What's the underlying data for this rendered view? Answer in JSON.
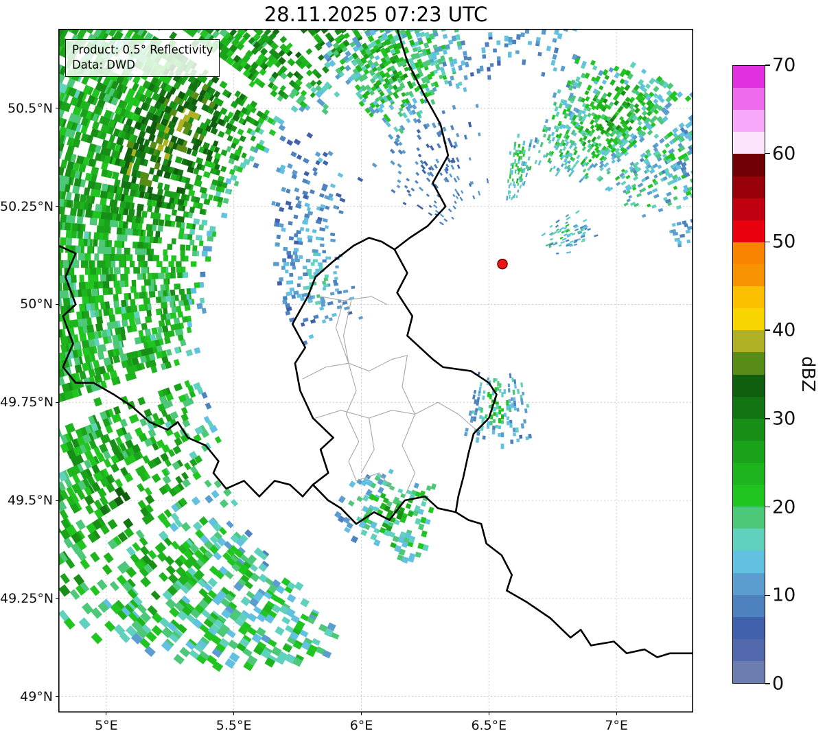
{
  "title": "28.11.2025 07:23 UTC",
  "annotation": {
    "line1": "Product: 0.5° Reflectivity",
    "line2": "Data: DWD"
  },
  "colorbar": {
    "label": "dBZ",
    "min": 0,
    "max": 70,
    "step": 2.5,
    "ticks": [
      0,
      10,
      20,
      30,
      40,
      50,
      60,
      70
    ],
    "colors": [
      "#6b7cae",
      "#5269ae",
      "#4161ad",
      "#4d82be",
      "#5b9dce",
      "#62c0e0",
      "#5fd1bc",
      "#4cc878",
      "#20c520",
      "#1db41d",
      "#1aa31a",
      "#178f17",
      "#137413",
      "#0f5f0f",
      "#578c17",
      "#b0b024",
      "#f8d400",
      "#fdc000",
      "#f89300",
      "#f88400",
      "#e8000f",
      "#c00010",
      "#98000a",
      "#700006",
      "#fde4fd",
      "#f8a8f8",
      "#ee6bee",
      "#e030e0"
    ]
  },
  "chart_data": {
    "type": "radar_reflectivity_map",
    "timestamp_utc": "28.11.2025 07:23 UTC",
    "product": "0.5° Reflectivity",
    "data_source": "DWD",
    "unit": "dBZ",
    "axes": {
      "lon_min": 4.812,
      "lon_max": 7.301,
      "lat_min": 48.959,
      "lat_max": 50.703,
      "lon_ticks": [
        {
          "value": 5.0,
          "label": "5°E"
        },
        {
          "value": 5.5,
          "label": "5.5°E"
        },
        {
          "value": 6.0,
          "label": "6°E"
        },
        {
          "value": 6.5,
          "label": "6.5°E"
        },
        {
          "value": 7.0,
          "label": "7°E"
        }
      ],
      "lat_ticks": [
        {
          "value": 50.5,
          "label": "50.5°N"
        },
        {
          "value": 50.25,
          "label": "50.25°N"
        },
        {
          "value": 50.0,
          "label": "50°N"
        },
        {
          "value": 49.75,
          "label": "49.75°N"
        },
        {
          "value": 49.5,
          "label": "49.5°N"
        },
        {
          "value": 49.25,
          "label": "49.25°N"
        },
        {
          "value": 49.0,
          "label": "49°N"
        }
      ],
      "grid_color": "#c6c6c6",
      "grid_dashed": true
    },
    "radar_site": {
      "lon": 6.553,
      "lat": 50.103,
      "marker_color": "#ea1515",
      "marker_edge": "#7a0000",
      "marker_radius_px": 7
    },
    "borders": {
      "country_color": "#000000",
      "country_width": 2.6,
      "region_color": "#a6a6a6",
      "region_width": 1.1,
      "country_lines": [
        [
          [
            6.14,
            50.703
          ],
          [
            6.18,
            50.62
          ],
          [
            6.25,
            50.53
          ],
          [
            6.31,
            50.46
          ],
          [
            6.34,
            50.38
          ],
          [
            6.28,
            50.31
          ],
          [
            6.33,
            50.25
          ],
          [
            6.26,
            50.2
          ],
          [
            6.19,
            50.17
          ],
          [
            6.13,
            50.14
          ]
        ],
        [
          [
            6.13,
            50.14
          ],
          [
            6.18,
            50.08
          ],
          [
            6.14,
            50.03
          ],
          [
            6.2,
            49.97
          ],
          [
            6.18,
            49.92
          ],
          [
            6.23,
            49.89
          ],
          [
            6.28,
            49.86
          ],
          [
            6.32,
            49.84
          ],
          [
            6.43,
            49.83
          ],
          [
            6.5,
            49.8
          ],
          [
            6.53,
            49.77
          ],
          [
            6.5,
            49.71
          ],
          [
            6.44,
            49.67
          ],
          [
            6.42,
            49.62
          ],
          [
            6.4,
            49.56
          ],
          [
            6.38,
            49.51
          ],
          [
            6.37,
            49.47
          ]
        ],
        [
          [
            6.37,
            49.47
          ],
          [
            6.3,
            49.48
          ],
          [
            6.25,
            49.51
          ],
          [
            6.17,
            49.5
          ],
          [
            6.11,
            49.45
          ],
          [
            6.05,
            49.47
          ],
          [
            5.98,
            49.44
          ],
          [
            5.92,
            49.48
          ],
          [
            5.87,
            49.5
          ],
          [
            5.81,
            49.54
          ]
        ],
        [
          [
            5.81,
            49.54
          ],
          [
            5.87,
            49.57
          ],
          [
            5.84,
            49.63
          ],
          [
            5.89,
            49.66
          ],
          [
            5.81,
            49.71
          ],
          [
            5.76,
            49.78
          ],
          [
            5.74,
            49.85
          ],
          [
            5.78,
            49.89
          ],
          [
            5.73,
            49.95
          ],
          [
            5.79,
            50.02
          ],
          [
            5.82,
            50.07
          ],
          [
            5.89,
            50.11
          ],
          [
            5.97,
            50.15
          ],
          [
            6.03,
            50.17
          ],
          [
            6.08,
            50.16
          ],
          [
            6.13,
            50.14
          ]
        ],
        [
          [
            4.812,
            50.15
          ],
          [
            4.88,
            50.13
          ],
          [
            4.84,
            50.07
          ],
          [
            4.88,
            50.0
          ],
          [
            4.83,
            49.97
          ],
          [
            4.87,
            49.9
          ],
          [
            4.83,
            49.84
          ],
          [
            4.88,
            49.8
          ],
          [
            4.95,
            49.8
          ],
          [
            5.03,
            49.77
          ],
          [
            5.1,
            49.74
          ],
          [
            5.17,
            49.7
          ],
          [
            5.24,
            49.68
          ],
          [
            5.28,
            49.7
          ],
          [
            5.32,
            49.66
          ],
          [
            5.39,
            49.64
          ],
          [
            5.44,
            49.6
          ],
          [
            5.42,
            49.57
          ],
          [
            5.47,
            49.53
          ],
          [
            5.54,
            49.55
          ],
          [
            5.6,
            49.51
          ],
          [
            5.66,
            49.55
          ],
          [
            5.72,
            49.54
          ],
          [
            5.77,
            49.51
          ],
          [
            5.81,
            49.54
          ]
        ],
        [
          [
            6.37,
            49.47
          ],
          [
            6.42,
            49.45
          ],
          [
            6.47,
            49.44
          ],
          [
            6.49,
            49.39
          ],
          [
            6.55,
            49.36
          ],
          [
            6.59,
            49.31
          ],
          [
            6.57,
            49.27
          ],
          [
            6.65,
            49.24
          ],
          [
            6.74,
            49.2
          ],
          [
            6.82,
            49.15
          ],
          [
            6.86,
            49.17
          ],
          [
            6.9,
            49.13
          ],
          [
            6.99,
            49.14
          ],
          [
            7.04,
            49.11
          ],
          [
            7.11,
            49.12
          ],
          [
            7.16,
            49.1
          ],
          [
            7.21,
            49.11
          ],
          [
            7.301,
            49.11
          ]
        ]
      ],
      "region_lines": [
        [
          [
            5.84,
            50.02
          ],
          [
            5.93,
            50.01
          ],
          [
            6.04,
            50.02
          ],
          [
            6.1,
            50.0
          ]
        ],
        [
          [
            5.96,
            50.01
          ],
          [
            5.93,
            49.92
          ],
          [
            5.95,
            49.85
          ]
        ],
        [
          [
            5.77,
            49.81
          ],
          [
            5.86,
            49.84
          ],
          [
            5.95,
            49.85
          ],
          [
            6.03,
            49.83
          ],
          [
            6.12,
            49.86
          ],
          [
            6.18,
            49.87
          ]
        ],
        [
          [
            6.18,
            49.87
          ],
          [
            6.16,
            49.79
          ],
          [
            6.21,
            49.72
          ],
          [
            6.16,
            49.64
          ],
          [
            6.21,
            49.57
          ],
          [
            6.17,
            49.51
          ]
        ],
        [
          [
            5.82,
            49.71
          ],
          [
            5.92,
            49.73
          ],
          [
            6.03,
            49.71
          ],
          [
            6.12,
            49.73
          ],
          [
            6.21,
            49.72
          ]
        ],
        [
          [
            5.95,
            49.85
          ],
          [
            5.98,
            49.78
          ],
          [
            5.94,
            49.72
          ],
          [
            5.99,
            49.65
          ],
          [
            5.95,
            49.6
          ],
          [
            5.98,
            49.55
          ]
        ],
        [
          [
            5.98,
            49.55
          ],
          [
            6.07,
            49.57
          ],
          [
            6.12,
            49.53
          ]
        ],
        [
          [
            6.03,
            49.71
          ],
          [
            6.05,
            49.63
          ],
          [
            6.0,
            49.57
          ]
        ],
        [
          [
            5.93,
            50.01
          ],
          [
            5.9,
            49.94
          ],
          [
            5.95,
            49.85
          ]
        ],
        [
          [
            6.21,
            49.72
          ],
          [
            6.3,
            49.75
          ],
          [
            6.38,
            49.72
          ],
          [
            6.45,
            49.68
          ]
        ]
      ]
    },
    "echo_regions": [
      {
        "id": "west-arc",
        "az": [
          232,
          336
        ],
        "r_in": [
          95,
          58
        ],
        "r_out": [
          168,
          168
        ],
        "density": 0.72,
        "dbz": [
          23,
          6
        ],
        "inner_fade": 9,
        "cores": [
          {
            "az": 293,
            "r": 98,
            "boost": 10,
            "saz": 14,
            "sr": 13
          },
          {
            "az": 320,
            "r": 82,
            "boost": 6,
            "saz": 8,
            "sr": 10
          },
          {
            "az": 286,
            "r": 107,
            "boost": 7,
            "saz": 5,
            "sr": 6
          },
          {
            "az": 237,
            "r": 125,
            "boost": 5,
            "saz": 5,
            "sr": 10
          }
        ],
        "gaps": [
          251,
          305,
          318
        ]
      },
      {
        "id": "southwest-arc",
        "az": [
          203,
          233
        ],
        "r_in": [
          112,
          97
        ],
        "r_out": [
          122,
          166
        ],
        "density": 0.5,
        "dbz": [
          18,
          6
        ],
        "inner_fade": 6,
        "cores": [
          {
            "az": 228,
            "r": 130,
            "boost": 6,
            "saz": 5,
            "sr": 12
          },
          {
            "az": 211,
            "r": 108,
            "boost": 4,
            "saz": 4,
            "sr": 6
          }
        ]
      },
      {
        "id": "nw-inner-scatter",
        "az": [
          248,
          304
        ],
        "r_in": [
          42,
          50
        ],
        "r_out": [
          62,
          70
        ],
        "density": 0.3,
        "dbz": [
          10,
          4
        ],
        "cores": [
          {
            "az": 264,
            "r": 52,
            "boost": 5,
            "saz": 8,
            "sr": 6
          }
        ]
      },
      {
        "id": "nnw-sparse",
        "az": [
          300,
          352
        ],
        "r_in": [
          18,
          18
        ],
        "r_out": [
          48,
          48
        ],
        "density": 0.12,
        "dbz": [
          9,
          3
        ]
      },
      {
        "id": "north-mass",
        "az": [
          318,
          350
        ],
        "r_in": [
          44,
          52
        ],
        "r_out": [
          80,
          82
        ],
        "density": 0.6,
        "dbz": [
          15,
          6
        ],
        "cores": [
          {
            "az": 331,
            "r": 62,
            "boost": 8,
            "saz": 9,
            "sr": 9
          }
        ]
      },
      {
        "id": "top-north-sparse",
        "az": [
          348,
          382
        ],
        "r_in": [
          50,
          55
        ],
        "r_out": [
          78,
          80
        ],
        "density": 0.22,
        "dbz": [
          11,
          4
        ]
      },
      {
        "id": "nne-cluster",
        "az": [
          3,
          16
        ],
        "r_in": [
          18,
          18
        ],
        "r_out": [
          38,
          38
        ],
        "density": 0.5,
        "dbz": [
          13,
          5
        ],
        "cores": [
          {
            "az": 9,
            "r": 25,
            "boost": 7,
            "saz": 4,
            "sr": 5
          },
          {
            "az": 8,
            "r": 33,
            "boost": 5,
            "saz": 3,
            "sr": 3
          }
        ]
      },
      {
        "id": "ne-mass",
        "az": [
          16,
          72
        ],
        "r_in": [
          26,
          40
        ],
        "r_out": [
          60,
          84
        ],
        "density": 0.55,
        "dbz": [
          15,
          6
        ],
        "cores": [
          {
            "az": 36,
            "r": 52,
            "boost": 10,
            "saz": 9,
            "sr": 13
          },
          {
            "az": 24,
            "r": 38,
            "boost": 4,
            "saz": 5,
            "sr": 6
          }
        ],
        "gaps": [
          50
        ]
      },
      {
        "id": "east-blobs",
        "az": [
          50,
          80
        ],
        "r_in": [
          13,
          13
        ],
        "r_out": [
          27,
          27
        ],
        "density": 0.3,
        "dbz": [
          13,
          5
        ],
        "cores": [
          {
            "az": 62,
            "r": 19,
            "boost": 5,
            "saz": 5,
            "sr": 4
          }
        ]
      },
      {
        "id": "east-far-bit",
        "az": [
          74,
          85
        ],
        "r_in": [
          46,
          46
        ],
        "r_out": [
          57,
          57
        ],
        "density": 0.3,
        "dbz": [
          11,
          4
        ]
      },
      {
        "id": "trier-cluster",
        "az": [
          170,
          193
        ],
        "r_in": [
          32,
          32
        ],
        "r_out": [
          52,
          52
        ],
        "density": 0.45,
        "dbz": [
          12,
          5
        ],
        "cores": [
          {
            "az": 182,
            "r": 40,
            "boost": 9,
            "saz": 5,
            "sr": 6
          }
        ]
      },
      {
        "id": "south-band",
        "az": [
          195,
          215
        ],
        "r_in": [
          66,
          66
        ],
        "r_out": [
          90,
          90
        ],
        "density": 0.45,
        "dbz": [
          15,
          6
        ],
        "cores": [
          {
            "az": 203,
            "r": 77,
            "boost": 8,
            "saz": 5,
            "sr": 8
          },
          {
            "az": 199,
            "r": 71,
            "boost": 4,
            "saz": 3,
            "sr": 4
          }
        ]
      }
    ]
  }
}
